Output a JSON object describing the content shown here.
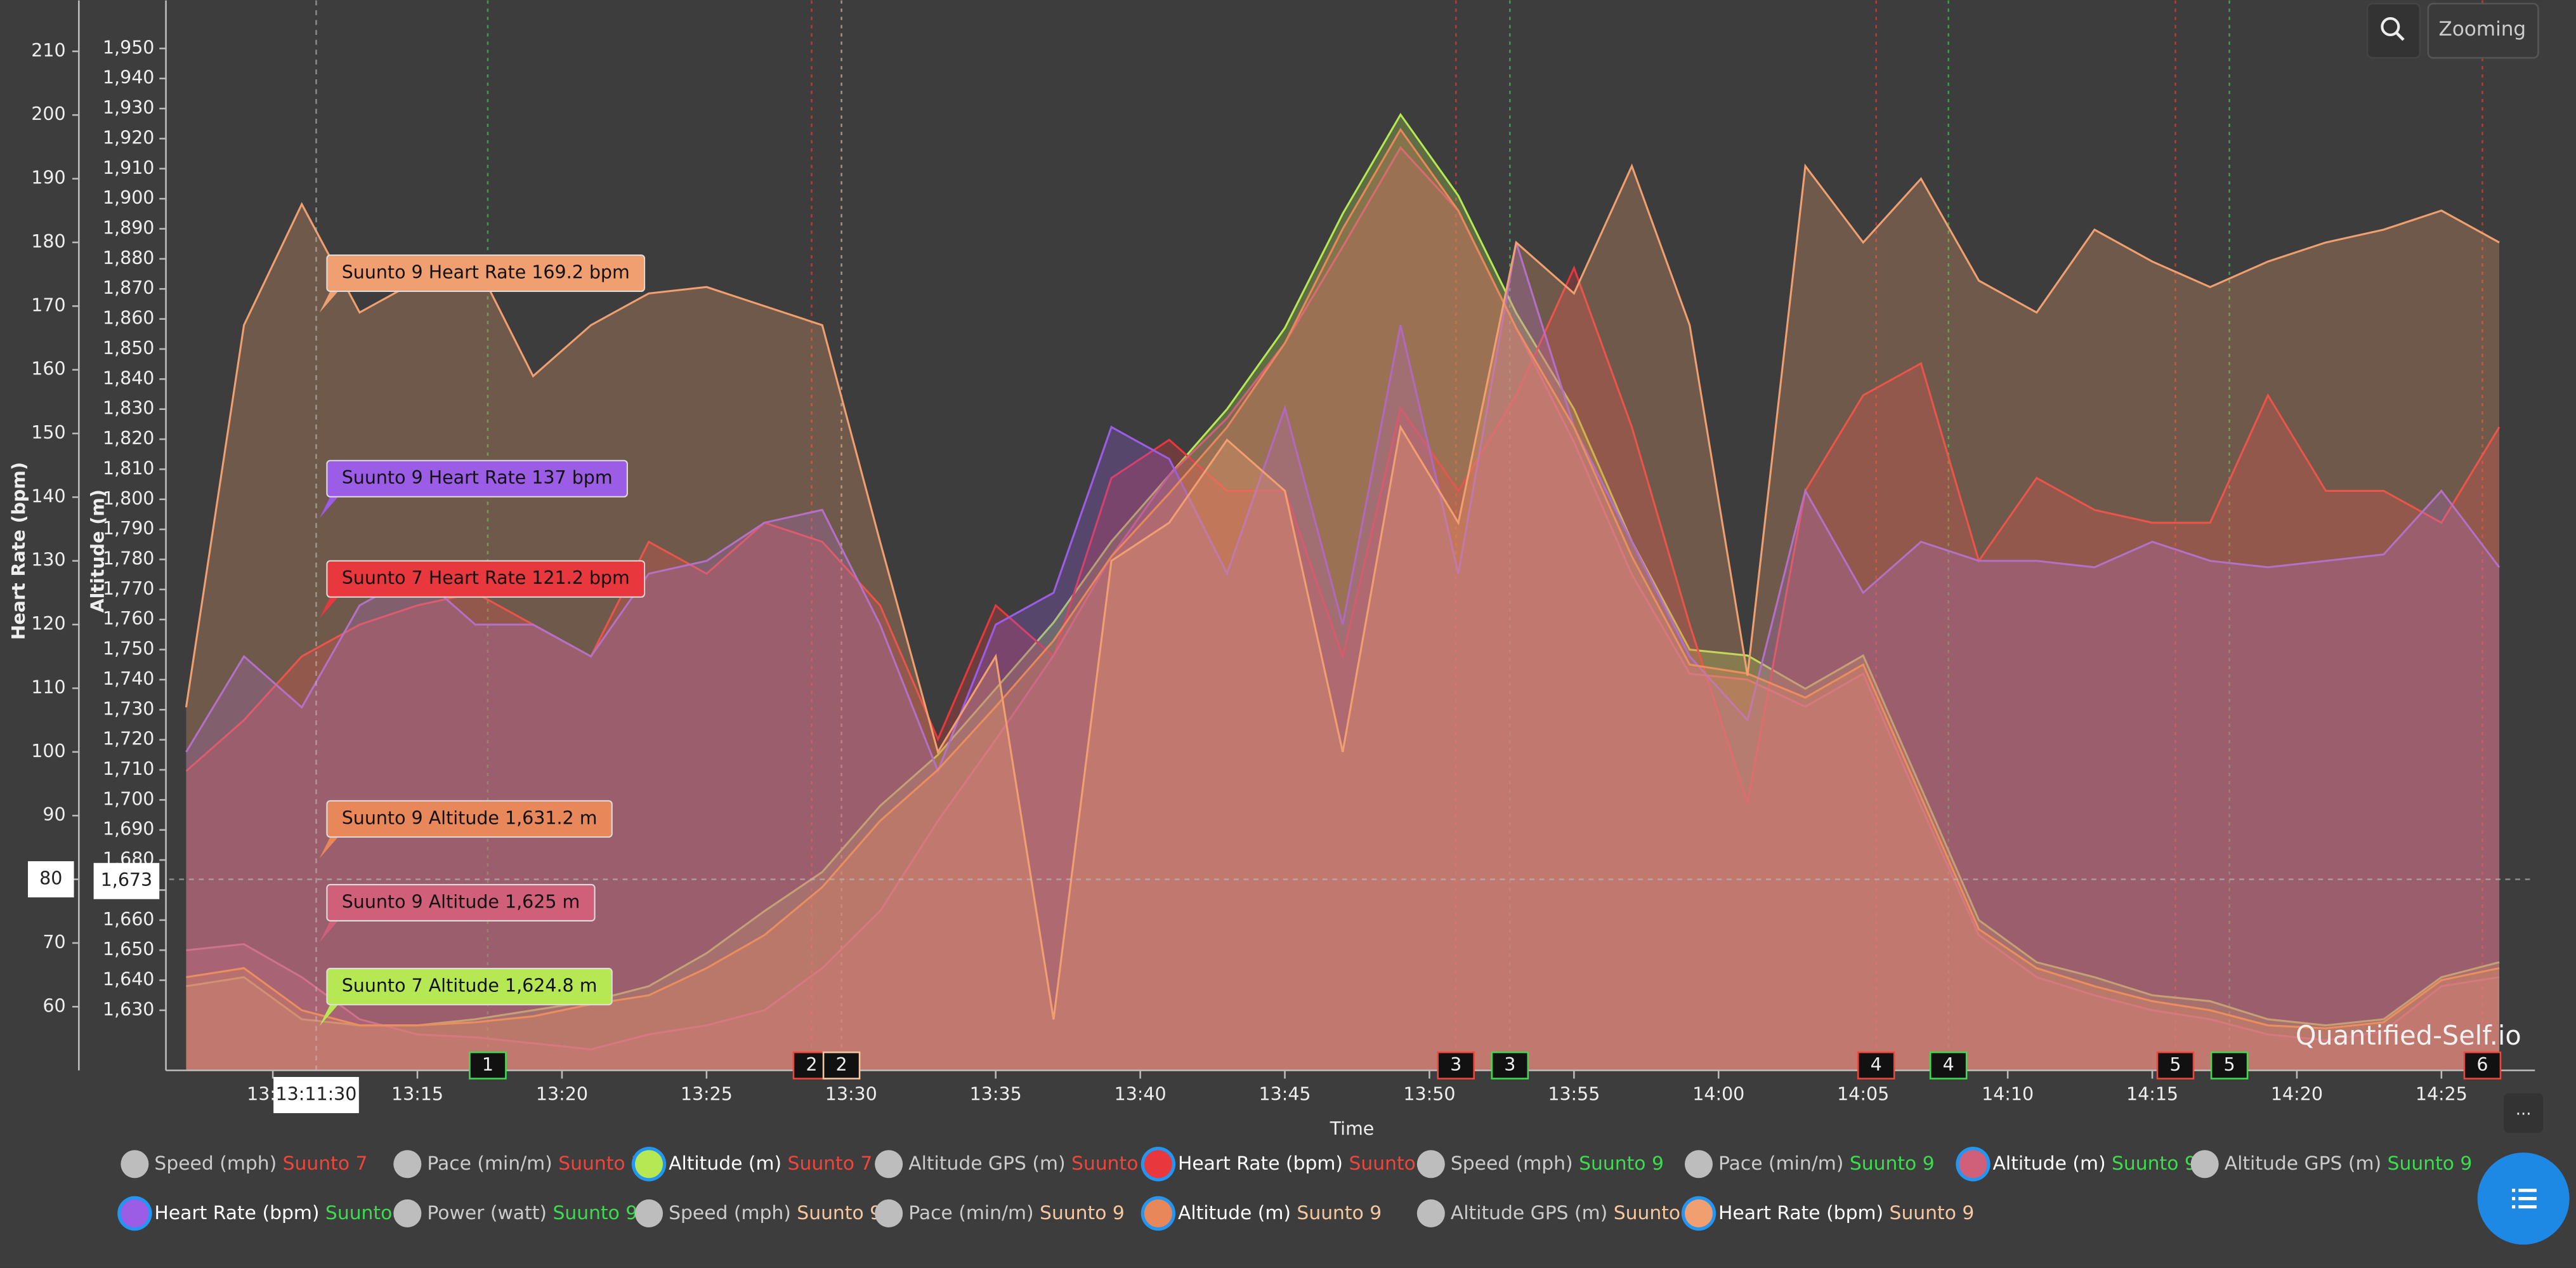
{
  "chart_data": {
    "type": "area",
    "ylabel": "Heart Rate (bpm)",
    "y2label": "Altitude (m)",
    "xlabel": "Time",
    "ylim": [
      50,
      218
    ],
    "yticks": [
      60,
      70,
      80,
      90,
      100,
      110,
      120,
      130,
      140,
      150,
      160,
      170,
      180,
      190,
      200,
      210
    ],
    "y2lim": [
      1610,
      1966
    ],
    "y2ticks": [
      {
        "value": 1630,
        "label": "1,630"
      },
      {
        "value": 1640,
        "label": "1,640"
      },
      {
        "value": 1650,
        "label": "1,650"
      },
      {
        "value": 1660,
        "label": "1,660"
      },
      {
        "value": 1670,
        "label": "1,670"
      },
      {
        "value": 1680,
        "label": "1,680"
      },
      {
        "value": 1690,
        "label": "1,690"
      },
      {
        "value": 1700,
        "label": "1,700"
      },
      {
        "value": 1710,
        "label": "1,710"
      },
      {
        "value": 1720,
        "label": "1,720"
      },
      {
        "value": 1730,
        "label": "1,730"
      },
      {
        "value": 1740,
        "label": "1,740"
      },
      {
        "value": 1750,
        "label": "1,750"
      },
      {
        "value": 1760,
        "label": "1,760"
      },
      {
        "value": 1770,
        "label": "1,770"
      },
      {
        "value": 1780,
        "label": "1,780"
      },
      {
        "value": 1790,
        "label": "1,790"
      },
      {
        "value": 1800,
        "label": "1,800"
      },
      {
        "value": 1810,
        "label": "1,810"
      },
      {
        "value": 1820,
        "label": "1,820"
      },
      {
        "value": 1830,
        "label": "1,830"
      },
      {
        "value": 1840,
        "label": "1,840"
      },
      {
        "value": 1850,
        "label": "1,850"
      },
      {
        "value": 1860,
        "label": "1,860"
      },
      {
        "value": 1870,
        "label": "1,870"
      },
      {
        "value": 1880,
        "label": "1,880"
      },
      {
        "value": 1890,
        "label": "1,890"
      },
      {
        "value": 1900,
        "label": "1,900"
      },
      {
        "value": 1910,
        "label": "1,910"
      },
      {
        "value": 1920,
        "label": "1,920"
      },
      {
        "value": 1930,
        "label": "1,930"
      },
      {
        "value": 1940,
        "label": "1,940"
      },
      {
        "value": 1950,
        "label": "1,950"
      }
    ],
    "xlim": [
      "13:06:25",
      "14:28:14"
    ],
    "xticks": [
      "13:10",
      "13:15",
      "13:20",
      "13:25",
      "13:30",
      "13:35",
      "13:40",
      "13:45",
      "13:50",
      "13:55",
      "14:00",
      "14:05",
      "14:10",
      "14:15",
      "14:20",
      "14:25"
    ],
    "grid": false,
    "x": [
      "13:07",
      "13:09",
      "13:11",
      "13:13",
      "13:15",
      "13:17",
      "13:19",
      "13:21",
      "13:23",
      "13:25",
      "13:27",
      "13:29",
      "13:31",
      "13:33",
      "13:35",
      "13:37",
      "13:39",
      "13:41",
      "13:43",
      "13:45",
      "13:47",
      "13:49",
      "13:51",
      "13:53",
      "13:55",
      "13:57",
      "13:59",
      "14:01",
      "14:03",
      "14:05",
      "14:07",
      "14:09",
      "14:11",
      "14:13",
      "14:15",
      "14:17",
      "14:19",
      "14:21",
      "14:23",
      "14:25",
      "14:27"
    ],
    "series": [
      {
        "name": "Speed (mph)",
        "device": "Suunto 7",
        "device_color": "#f0453a"
      },
      {
        "name": "Pace (min/m)",
        "device": "Suunto 7",
        "device_color": "#f0453a"
      },
      {
        "name": "Altitude (m)",
        "device": "Suunto 7",
        "device_color": "#f0453a",
        "color": "#b5e853",
        "axis": "y2",
        "values": [
          1638,
          1641,
          1627,
          1625,
          1625,
          1627,
          1630,
          1633,
          1638,
          1649,
          1663,
          1676,
          1698,
          1715,
          1737,
          1759,
          1786,
          1808,
          1830,
          1857,
          1895,
          1928,
          1901,
          1862,
          1830,
          1786,
          1750,
          1748,
          1737,
          1748,
          1704,
          1660,
          1646,
          1641,
          1635,
          1633,
          1627,
          1625,
          1627,
          1641,
          1646
        ]
      },
      {
        "name": "Altitude GPS (m)",
        "device": "Suunto 7",
        "device_color": "#f0453a"
      },
      {
        "name": "Heart Rate (bpm)",
        "device": "Suunto 7",
        "device_color": "#f0453a",
        "color": "#e8383d",
        "values": [
          97,
          105,
          115,
          120,
          123,
          125,
          120,
          115,
          133,
          128,
          136,
          133,
          123,
          102,
          123,
          115,
          143,
          149,
          141,
          141,
          115,
          154,
          141,
          156,
          176,
          151,
          120,
          92,
          141,
          156,
          161,
          130,
          143,
          138,
          136,
          136,
          156,
          141,
          141,
          136,
          151
        ]
      },
      {
        "name": "Speed (mph)",
        "device": "Suunto 9",
        "device_color": "#3ddc4f"
      },
      {
        "name": "Pace (min/m)",
        "device": "Suunto 9",
        "device_color": "#3ddc4f"
      },
      {
        "name": "Altitude (m)",
        "device": "Suunto 9",
        "device_color": "#3ddc4f",
        "color": "#d0607a",
        "axis": "y2",
        "values": [
          1650,
          1652,
          1641,
          1627,
          1622,
          1621,
          1619,
          1617,
          1622,
          1625,
          1630,
          1644,
          1663,
          1693,
          1720,
          1748,
          1781,
          1808,
          1827,
          1852,
          1884,
          1917,
          1896,
          1857,
          1819,
          1775,
          1742,
          1740,
          1731,
          1742,
          1698,
          1655,
          1641,
          1635,
          1630,
          1627,
          1622,
          1620,
          1623,
          1638,
          1641
        ]
      },
      {
        "name": "Altitude GPS (m)",
        "device": "Suunto 9",
        "device_color": "#3ddc4f"
      },
      {
        "name": "Heart Rate (bpm)",
        "device": "Suunto 9",
        "device_color": "#3ddc4f",
        "color": "#9b5de5",
        "values": [
          100,
          115,
          107,
          123,
          128,
          120,
          120,
          115,
          128,
          130,
          136,
          138,
          120,
          97,
          120,
          125,
          151,
          146,
          128,
          154,
          120,
          167,
          128,
          180,
          151,
          133,
          115,
          105,
          141,
          125,
          133,
          130,
          130,
          129,
          133,
          130,
          129,
          130,
          131,
          141,
          129
        ]
      },
      {
        "name": "Power (watt)",
        "device": "Suunto 9",
        "device_color": "#3ddc4f"
      },
      {
        "name": "Speed (mph)",
        "device": "Suunto 9",
        "device_color": "#f5c8a0"
      },
      {
        "name": "Pace (min/m)",
        "device": "Suunto 9",
        "device_color": "#f5c8a0"
      },
      {
        "name": "Altitude (m)",
        "device": "Suunto 9",
        "device_color": "#f5c8a0",
        "color": "#e8875a",
        "axis": "y2",
        "values": [
          1641,
          1644,
          1630,
          1625,
          1625,
          1626,
          1628,
          1632,
          1635,
          1644,
          1655,
          1671,
          1693,
          1710,
          1731,
          1753,
          1781,
          1802,
          1824,
          1852,
          1890,
          1923,
          1896,
          1857,
          1824,
          1781,
          1745,
          1742,
          1734,
          1745,
          1701,
          1657,
          1644,
          1638,
          1633,
          1630,
          1625,
          1624,
          1626,
          1640,
          1644
        ]
      },
      {
        "name": "Altitude GPS (m)",
        "device": "Suunto 9",
        "device_color": "#f5c8a0"
      },
      {
        "name": "Heart Rate (bpm)",
        "device": "Suunto 9",
        "device_color": "#f5c8a0",
        "color": "#f0a070",
        "values": [
          107,
          167,
          186,
          169,
          174,
          177,
          159,
          167,
          172,
          173,
          170,
          167,
          133,
          100,
          115,
          58,
          130,
          136,
          149,
          141,
          100,
          151,
          136,
          180,
          172,
          192,
          167,
          112,
          192,
          180,
          190,
          174,
          169,
          182,
          177,
          173,
          177,
          180,
          182,
          185,
          180
        ]
      }
    ],
    "crosshair": {
      "y": 80,
      "y2": {
        "value": 1673,
        "label": "1,673"
      },
      "x": "13:11:30"
    },
    "tooltips": [
      {
        "text": "Suunto 9 Heart Rate 169.2 bpm",
        "color": "#f0a070"
      },
      {
        "text": "Suunto 9 Heart Rate 137 bpm",
        "color": "#9b5de5"
      },
      {
        "text": "Suunto 7 Heart Rate 121.2 bpm",
        "color": "#e8383d"
      },
      {
        "text": "Suunto 9 Altitude 1,631.2 m",
        "color": "#e8875a"
      },
      {
        "text": "Suunto 9 Altitude 1,625 m",
        "color": "#d0607a"
      },
      {
        "text": "Suunto 7 Altitude 1,624.8 m",
        "color": "#b5e853"
      }
    ],
    "laps": [
      {
        "label": "1",
        "x": "13:17:26",
        "color": "#3ddc4f"
      },
      {
        "label": "2",
        "x": "13:28:38",
        "color": "#f0453a"
      },
      {
        "label": "2",
        "x": "13:29:40",
        "color": "#f5c8a0"
      },
      {
        "label": "3",
        "x": "13:50:55",
        "color": "#f0453a"
      },
      {
        "label": "3",
        "x": "13:52:47",
        "color": "#3ddc4f"
      },
      {
        "label": "4",
        "x": "14:05:27",
        "color": "#f0453a"
      },
      {
        "label": "4",
        "x": "14:07:57",
        "color": "#3ddc4f"
      },
      {
        "label": "5",
        "x": "14:15:48",
        "color": "#f0453a"
      },
      {
        "label": "5",
        "x": "14:17:40",
        "color": "#3ddc4f"
      },
      {
        "label": "6",
        "x": "14:26:25",
        "color": "#f0453a"
      }
    ]
  },
  "watermark": "Quantified-Self.io",
  "zoom_button": "Zooming",
  "more_button": "..."
}
